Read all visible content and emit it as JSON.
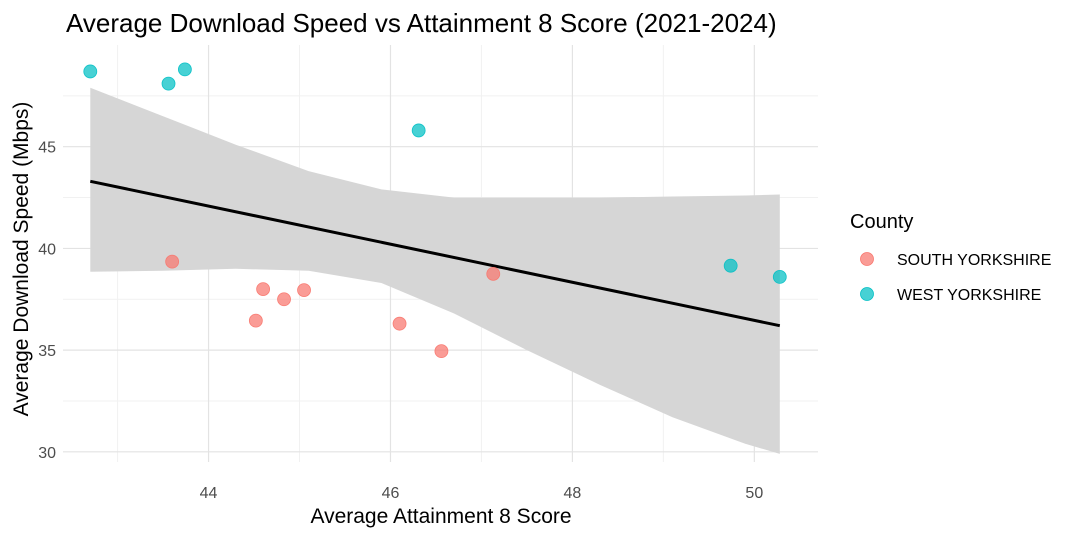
{
  "chart_data": {
    "type": "scatter",
    "title": "Average Download Speed vs Attainment 8 Score (2021-2024)",
    "xlabel": "Average Attainment 8 Score",
    "ylabel": "Average Download Speed (Mbps)",
    "xlim": [
      42.4,
      50.7
    ],
    "ylim": [
      29.5,
      50
    ],
    "x_ticks": [
      44,
      46,
      48,
      50
    ],
    "y_ticks": [
      30,
      35,
      40,
      45
    ],
    "grid": true,
    "legend": {
      "title": "County",
      "position": "right"
    },
    "series": [
      {
        "name": "SOUTH YORKSHIRE",
        "color": "#f8766d",
        "points": [
          {
            "x": 43.6,
            "y": 39.35
          },
          {
            "x": 44.52,
            "y": 36.45
          },
          {
            "x": 44.6,
            "y": 38.0
          },
          {
            "x": 44.83,
            "y": 37.5
          },
          {
            "x": 45.05,
            "y": 37.95
          },
          {
            "x": 46.1,
            "y": 36.3
          },
          {
            "x": 46.56,
            "y": 34.95
          },
          {
            "x": 47.13,
            "y": 38.75
          }
        ]
      },
      {
        "name": "WEST YORKSHIRE",
        "color": "#00bfc4",
        "points": [
          {
            "x": 42.7,
            "y": 48.7
          },
          {
            "x": 43.56,
            "y": 48.1
          },
          {
            "x": 43.74,
            "y": 48.8
          },
          {
            "x": 46.31,
            "y": 45.8
          },
          {
            "x": 49.74,
            "y": 39.15
          },
          {
            "x": 50.28,
            "y": 38.6
          }
        ]
      }
    ],
    "trend_line": {
      "x": [
        42.7,
        50.28
      ],
      "y": [
        43.3,
        36.2
      ],
      "color": "#000000"
    },
    "confidence_band": {
      "color": "#d6d6d6",
      "x": [
        42.7,
        43.5,
        44.3,
        45.1,
        45.9,
        46.7,
        47.5,
        48.3,
        49.1,
        49.9,
        50.28
      ],
      "upper": [
        47.9,
        46.5,
        45.1,
        43.8,
        42.9,
        42.5,
        42.5,
        42.5,
        42.55,
        42.6,
        42.65
      ],
      "lower": [
        38.85,
        38.9,
        39.0,
        38.9,
        38.3,
        36.8,
        35.0,
        33.3,
        31.7,
        30.4,
        29.9
      ]
    }
  }
}
